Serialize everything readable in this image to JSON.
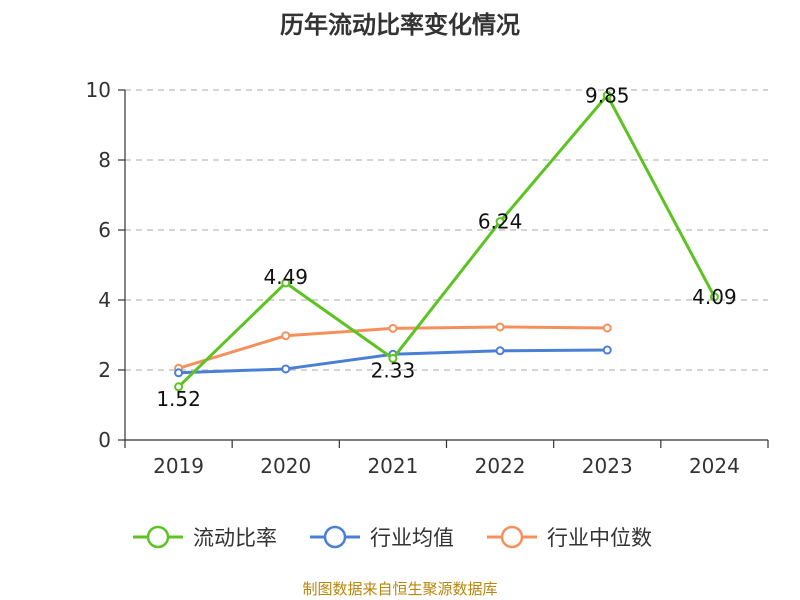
{
  "chart_data": {
    "type": "line",
    "title": "历年流动比率变化情况",
    "categories": [
      "2019",
      "2020",
      "2021",
      "2022",
      "2023",
      "2024"
    ],
    "ylim": [
      0,
      10
    ],
    "yticks": [
      0,
      2,
      4,
      6,
      8,
      10
    ],
    "grid": true,
    "legend_position": "bottom",
    "series": [
      {
        "name": "流动比率",
        "color": "#5dc322",
        "values": [
          1.52,
          4.49,
          2.33,
          6.24,
          9.85,
          4.09
        ],
        "data_labels": [
          "1.52",
          "4.49",
          "2.33",
          "6.24",
          "9.85",
          "4.09"
        ]
      },
      {
        "name": "行业均值",
        "color": "#4a7fd6",
        "values": [
          1.92,
          2.03,
          2.45,
          2.55,
          2.57,
          null
        ]
      },
      {
        "name": "行业中位数",
        "color": "#f5905c",
        "values": [
          2.05,
          2.98,
          3.19,
          3.23,
          3.2,
          null
        ]
      }
    ],
    "source": "制图数据来自恒生聚源数据库"
  }
}
